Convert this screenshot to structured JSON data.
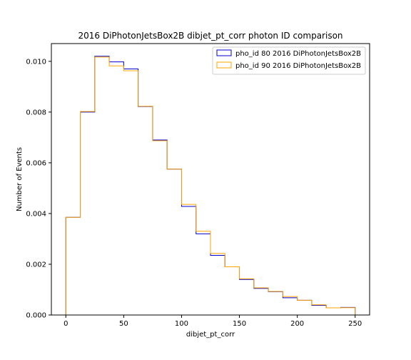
{
  "chart_data": {
    "type": "step",
    "title": "2016 DiPhotonJetsBox2B dibjet_pt_corr photon ID comparison",
    "xlabel": "dibjet_pt_corr",
    "ylabel": "Number of Events",
    "xlim": [
      -12.5,
      262.5
    ],
    "ylim": [
      0,
      0.0107
    ],
    "xticks": [
      0,
      50,
      100,
      150,
      200,
      250
    ],
    "xtick_labels": [
      "0",
      "50",
      "100",
      "150",
      "200",
      "250"
    ],
    "yticks": [
      0,
      0.002,
      0.004,
      0.006,
      0.008,
      0.01
    ],
    "ytick_labels": [
      "0.000",
      "0.002",
      "0.004",
      "0.006",
      "0.008",
      "0.010"
    ],
    "legend_position": "top-right",
    "bin_edges": [
      0,
      12.5,
      25,
      37.5,
      50,
      62.5,
      75,
      87.5,
      100,
      112.5,
      125,
      137.5,
      150,
      162.5,
      175,
      187.5,
      200,
      212.5,
      225,
      237.5,
      250
    ],
    "series": [
      {
        "name": "pho_id 80 2016 DiPhotonJetsBox2B",
        "color": "#0000cc",
        "values": [
          0.00385,
          0.008,
          0.0102,
          0.00998,
          0.0097,
          0.00822,
          0.0069,
          0.00575,
          0.00428,
          0.0032,
          0.00235,
          0.0019,
          0.0014,
          0.00105,
          0.00092,
          0.00068,
          0.00058,
          0.00038,
          0.00028,
          0.0003
        ]
      },
      {
        "name": "pho_id 90 2016 DiPhotonJetsBox2B",
        "color": "#ffa500",
        "values": [
          0.00385,
          0.00802,
          0.01017,
          0.00982,
          0.00963,
          0.00823,
          0.00687,
          0.00575,
          0.00436,
          0.0033,
          0.00243,
          0.0019,
          0.00143,
          0.00107,
          0.00093,
          0.00073,
          0.00058,
          0.0004,
          0.00028,
          0.00029
        ]
      }
    ]
  }
}
